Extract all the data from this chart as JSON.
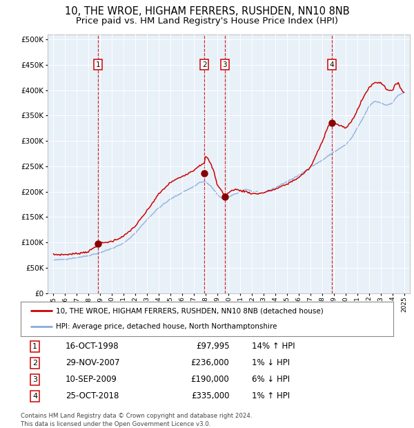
{
  "title": "10, THE WROE, HIGHAM FERRERS, RUSHDEN, NN10 8NB",
  "subtitle": "Price paid vs. HM Land Registry's House Price Index (HPI)",
  "title_fontsize": 10.5,
  "subtitle_fontsize": 9.5,
  "background_color": "#e8f0f8",
  "ylim": [
    0,
    500000
  ],
  "yticks": [
    0,
    50000,
    100000,
    150000,
    200000,
    250000,
    300000,
    350000,
    400000,
    450000,
    500000
  ],
  "xlabel_start": 1995,
  "xlabel_end": 2025,
  "sale_points": [
    {
      "label": "1",
      "date_num": 1998.8,
      "price": 97995
    },
    {
      "label": "2",
      "date_num": 2007.92,
      "price": 236000
    },
    {
      "label": "3",
      "date_num": 2009.67,
      "price": 190000
    },
    {
      "label": "4",
      "date_num": 2018.83,
      "price": 335000
    }
  ],
  "table_rows": [
    {
      "num": "1",
      "date": "16-OCT-1998",
      "price": "£97,995",
      "hpi": "14% ↑ HPI"
    },
    {
      "num": "2",
      "date": "29-NOV-2007",
      "price": "£236,000",
      "hpi": "1% ↓ HPI"
    },
    {
      "num": "3",
      "date": "10-SEP-2009",
      "price": "£190,000",
      "hpi": "6% ↓ HPI"
    },
    {
      "num": "4",
      "date": "25-OCT-2018",
      "price": "£335,000",
      "hpi": "1% ↑ HPI"
    }
  ],
  "legend_line1": "10, THE WROE, HIGHAM FERRERS, RUSHDEN, NN10 8NB (detached house)",
  "legend_line2": "HPI: Average price, detached house, North Northamptonshire",
  "footer": "Contains HM Land Registry data © Crown copyright and database right 2024.\nThis data is licensed under the Open Government Licence v3.0.",
  "red_line_color": "#cc0000",
  "blue_line_color": "#88aadd",
  "dashed_color": "#cc0000",
  "sale_marker_color": "#880000",
  "hpi_key_points": [
    [
      1995.0,
      65000
    ],
    [
      1996.0,
      67000
    ],
    [
      1997.0,
      70000
    ],
    [
      1998.0,
      74000
    ],
    [
      1999.0,
      80000
    ],
    [
      2000.0,
      88000
    ],
    [
      2001.0,
      98000
    ],
    [
      2002.0,
      118000
    ],
    [
      2003.0,
      145000
    ],
    [
      2004.0,
      168000
    ],
    [
      2005.0,
      185000
    ],
    [
      2006.0,
      198000
    ],
    [
      2007.0,
      210000
    ],
    [
      2007.5,
      218000
    ],
    [
      2008.0,
      220000
    ],
    [
      2008.5,
      210000
    ],
    [
      2009.0,
      195000
    ],
    [
      2009.5,
      185000
    ],
    [
      2010.0,
      190000
    ],
    [
      2010.5,
      195000
    ],
    [
      2011.0,
      200000
    ],
    [
      2011.5,
      205000
    ],
    [
      2012.0,
      200000
    ],
    [
      2012.5,
      198000
    ],
    [
      2013.0,
      198000
    ],
    [
      2014.0,
      208000
    ],
    [
      2015.0,
      220000
    ],
    [
      2016.0,
      232000
    ],
    [
      2017.0,
      248000
    ],
    [
      2018.0,
      262000
    ],
    [
      2019.0,
      278000
    ],
    [
      2020.0,
      292000
    ],
    [
      2020.5,
      305000
    ],
    [
      2021.0,
      325000
    ],
    [
      2021.5,
      345000
    ],
    [
      2022.0,
      368000
    ],
    [
      2022.5,
      378000
    ],
    [
      2023.0,
      375000
    ],
    [
      2023.5,
      370000
    ],
    [
      2024.0,
      375000
    ],
    [
      2024.5,
      390000
    ],
    [
      2025.0,
      395000
    ]
  ],
  "prop_key_points": [
    [
      1995.0,
      76000
    ],
    [
      1996.0,
      76000
    ],
    [
      1997.0,
      78000
    ],
    [
      1998.0,
      82000
    ],
    [
      1999.0,
      98000
    ],
    [
      2000.0,
      102000
    ],
    [
      2001.0,
      112000
    ],
    [
      2002.0,
      132000
    ],
    [
      2003.0,
      162000
    ],
    [
      2004.0,
      195000
    ],
    [
      2005.0,
      218000
    ],
    [
      2006.0,
      230000
    ],
    [
      2007.0,
      242000
    ],
    [
      2007.5,
      252000
    ],
    [
      2007.92,
      255000
    ],
    [
      2008.0,
      270000
    ],
    [
      2008.3,
      262000
    ],
    [
      2008.7,
      242000
    ],
    [
      2009.0,
      215000
    ],
    [
      2009.67,
      192000
    ],
    [
      2010.0,
      198000
    ],
    [
      2010.5,
      205000
    ],
    [
      2011.0,
      202000
    ],
    [
      2011.5,
      200000
    ],
    [
      2012.0,
      196000
    ],
    [
      2012.5,
      196000
    ],
    [
      2013.0,
      198000
    ],
    [
      2014.0,
      205000
    ],
    [
      2015.0,
      215000
    ],
    [
      2016.0,
      228000
    ],
    [
      2017.0,
      248000
    ],
    [
      2018.0,
      298000
    ],
    [
      2018.5,
      330000
    ],
    [
      2018.83,
      335000
    ],
    [
      2019.0,
      335000
    ],
    [
      2019.3,
      332000
    ],
    [
      2019.5,
      330000
    ],
    [
      2020.0,
      325000
    ],
    [
      2020.5,
      338000
    ],
    [
      2021.0,
      360000
    ],
    [
      2021.5,
      385000
    ],
    [
      2022.0,
      405000
    ],
    [
      2022.5,
      415000
    ],
    [
      2023.0,
      415000
    ],
    [
      2023.3,
      408000
    ],
    [
      2023.5,
      402000
    ],
    [
      2024.0,
      398000
    ],
    [
      2024.3,
      412000
    ],
    [
      2024.5,
      415000
    ],
    [
      2024.8,
      400000
    ],
    [
      2025.0,
      395000
    ]
  ]
}
